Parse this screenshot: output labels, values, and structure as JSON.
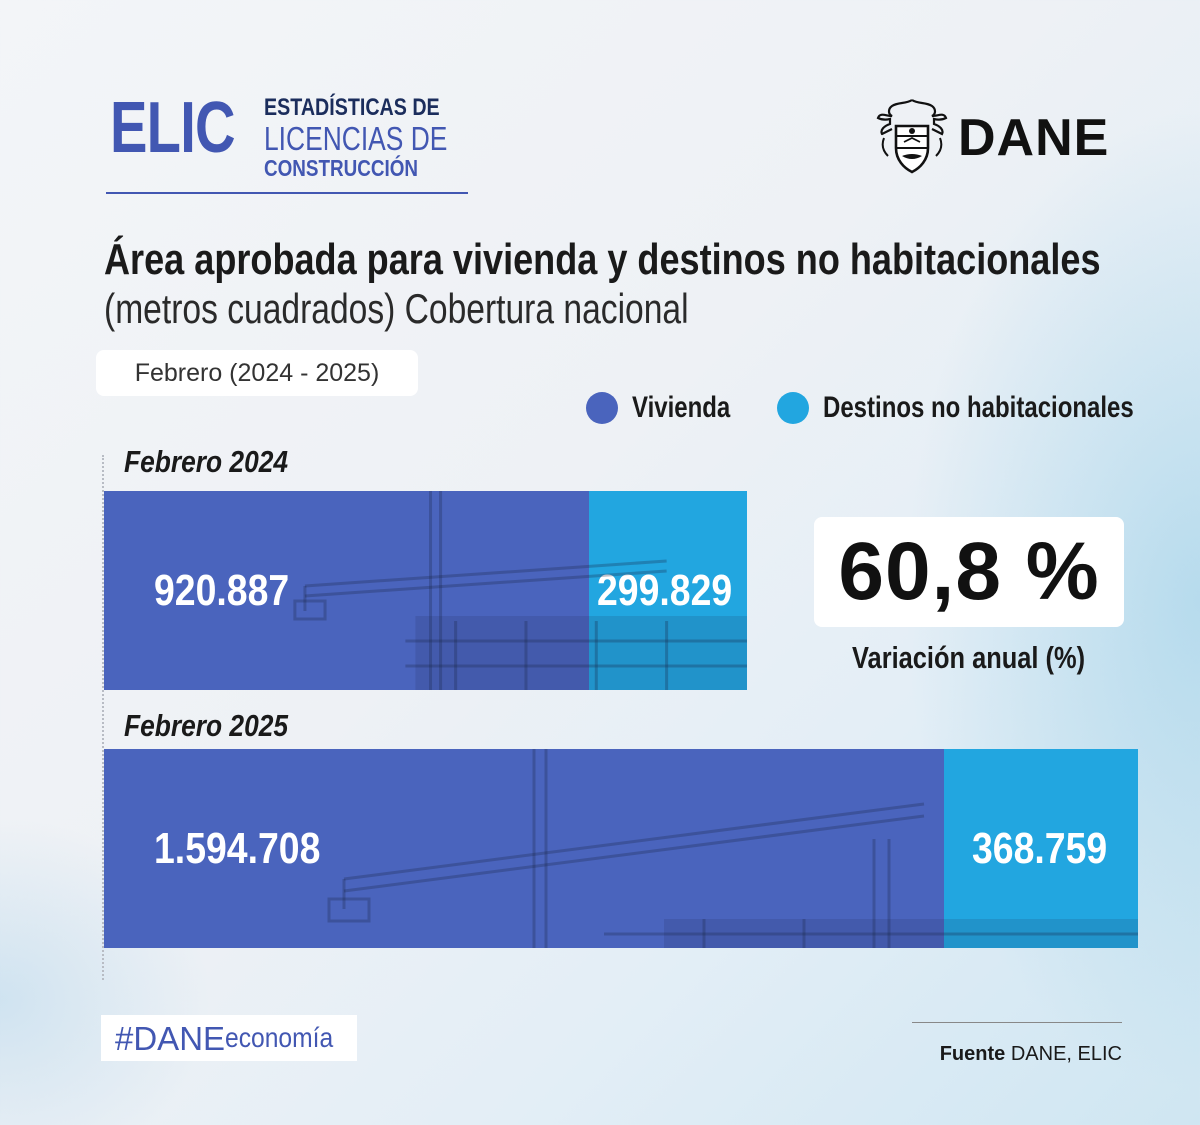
{
  "header": {
    "logo_main": "ELIC",
    "logo_line1": "ESTADÍSTICAS DE",
    "logo_line2": "LICENCIAS DE",
    "logo_line3": "CONSTRUCCIÓN",
    "agency": "DANE"
  },
  "chart_data": {
    "type": "bar",
    "orientation": "horizontal",
    "stacked": true,
    "title": "Área aprobada para vivienda y destinos no habitacionales",
    "subtitle": "(metros cuadrados) Cobertura nacional",
    "period_label": "Febrero (2024 - 2025)",
    "categories": [
      "Febrero 2024",
      "Febrero 2025"
    ],
    "category_values_text": [
      [
        "920.887",
        "299.829"
      ],
      [
        "1.594.708",
        "368.759"
      ]
    ],
    "series": [
      {
        "name": "Vivienda",
        "values": [
          920887,
          1594708
        ],
        "color": "#4a64bd"
      },
      {
        "name": "Destinos no habitacionales",
        "values": [
          299829,
          368759
        ],
        "color": "#22a6e0"
      }
    ],
    "legend_position": "top-right",
    "annotation": {
      "value": "60,8 %",
      "label": "Variación anual (%)"
    }
  },
  "footer": {
    "hashtag_strong": "#DANE",
    "hashtag_weak": "economía",
    "source_label": "Fuente",
    "source_text": "DANE, ELIC"
  }
}
